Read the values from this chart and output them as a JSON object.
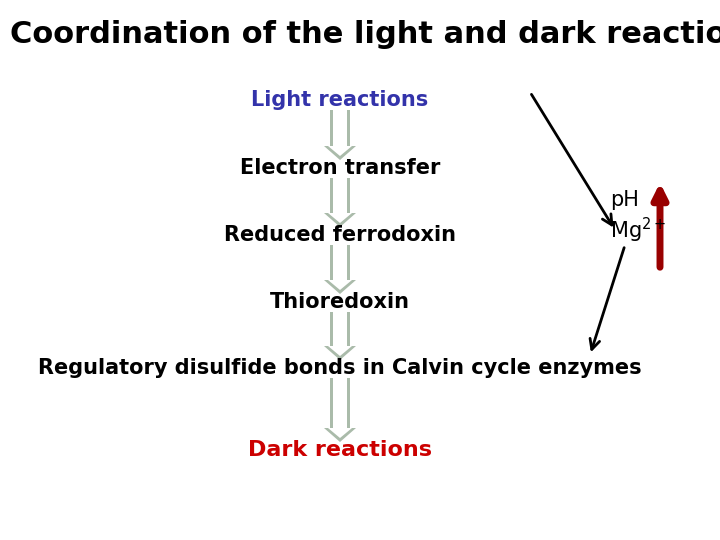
{
  "title": "Coordination of the light and dark reactions",
  "background_color": "#ffffff",
  "labels": {
    "light_reactions": "Light reactions",
    "electron_transfer": "Electron transfer",
    "reduced_ferrodoxin": "Reduced ferrodoxin",
    "thioredoxin": "Thioredoxin",
    "regulatory": "Regulatory disulfide bonds in Calvin cycle enzymes",
    "dark_reactions": "Dark reactions",
    "ph": "pH",
    "mg2": "Mg"
  },
  "label_colors": {
    "light_reactions": "#3333aa",
    "electron_transfer": "#000000",
    "reduced_ferrodoxin": "#000000",
    "thioredoxin": "#000000",
    "regulatory": "#000000",
    "dark_reactions": "#cc0000",
    "ph_mg": "#000000"
  },
  "down_arrow_color": "#aabbaa",
  "fontsize_title": 22,
  "fontsize_main": 15
}
